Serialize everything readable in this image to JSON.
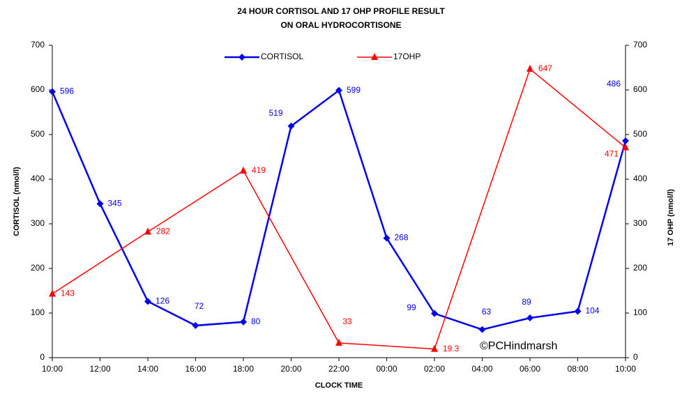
{
  "chart_data": {
    "type": "line",
    "title_lines": [
      "24 HOUR CORTISOL AND 17 OHP PROFILE RESULT",
      "ON ORAL HYDROCORTISONE"
    ],
    "xlabel": "CLOCK TIME",
    "ylabel": "CORTISOL (nmol/l)",
    "y2label": "17 OHP (nmol/l)",
    "annotation": "©PCHindmarsh",
    "xlim": [
      0,
      24
    ],
    "xticks": [
      {
        "value": 0,
        "label": "10:00"
      },
      {
        "value": 2,
        "label": "12:00"
      },
      {
        "value": 4,
        "label": "14:00"
      },
      {
        "value": 6,
        "label": "16:00"
      },
      {
        "value": 8,
        "label": "18:00"
      },
      {
        "value": 10,
        "label": "20:00"
      },
      {
        "value": 12,
        "label": "22:00"
      },
      {
        "value": 14,
        "label": "00:00"
      },
      {
        "value": 16,
        "label": "02:00"
      },
      {
        "value": 18,
        "label": "04:00"
      },
      {
        "value": 20,
        "label": "06:00"
      },
      {
        "value": 22,
        "label": "08:00"
      },
      {
        "value": 24,
        "label": "10:00"
      }
    ],
    "ylim": [
      0,
      700
    ],
    "yticks": [
      0,
      100,
      200,
      300,
      400,
      500,
      600,
      700
    ],
    "y2lim": [
      0,
      700
    ],
    "y2ticks": [
      0,
      100,
      200,
      300,
      400,
      500,
      600,
      700
    ],
    "series": [
      {
        "name": "CORTISOL",
        "color": "#0000ee",
        "marker": "diamond",
        "x": [
          0,
          2,
          4,
          6,
          8,
          10,
          12,
          14,
          16,
          18,
          20,
          22,
          24
        ],
        "values": [
          596,
          345,
          126,
          72,
          80,
          519,
          599,
          268,
          99,
          63,
          89,
          104,
          486
        ]
      },
      {
        "name": "17OHP",
        "color": "#ff0000",
        "marker": "triangle",
        "axis": "y2",
        "x": [
          0,
          4,
          8,
          12,
          16,
          20,
          24
        ],
        "values": [
          143,
          282,
          419,
          33,
          19.3,
          647,
          471
        ]
      }
    ]
  }
}
